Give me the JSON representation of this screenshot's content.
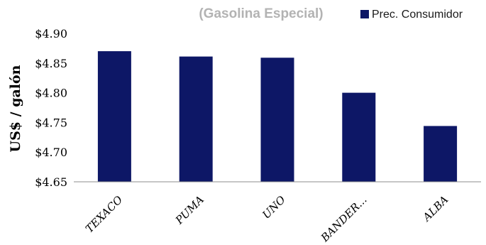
{
  "chart_data": {
    "type": "bar",
    "title": "(Gasolina Especial)",
    "ylabel": "US$ / galón",
    "xlabel": "",
    "categories": [
      "TEXACO",
      "PUMA",
      "UNO",
      "BANDER...",
      "ALBA"
    ],
    "series": [
      {
        "name": "Prec. Consumidor",
        "values": [
          4.87,
          4.861,
          4.859,
          4.8,
          4.744
        ]
      }
    ],
    "ylim": [
      4.65,
      4.9
    ],
    "yticks": [
      "$4.65",
      "$4.70",
      "$4.75",
      "$4.80",
      "$4.85",
      "$4.90"
    ],
    "grid": false,
    "legend_position": "top-right",
    "bar_color": "#0d1766"
  }
}
